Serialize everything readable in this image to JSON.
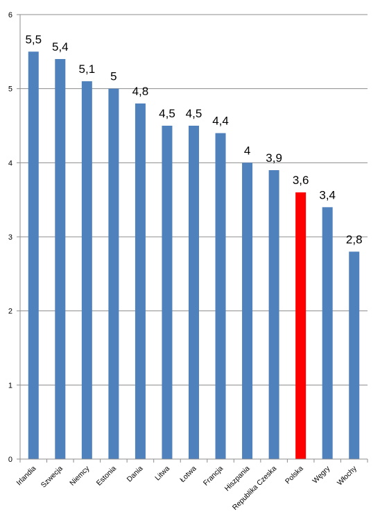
{
  "chart_data": {
    "type": "bar",
    "categories": [
      "Irlandia",
      "Szwecja",
      "Niemcy",
      "Estonia",
      "Dania",
      "Litwa",
      "Łotwa",
      "Francja",
      "Hiszpania",
      "Republika Czeska",
      "Polska",
      "Węgry",
      "Włochy"
    ],
    "values": [
      5.5,
      5.4,
      5.1,
      5.0,
      4.8,
      4.5,
      4.5,
      4.4,
      4.0,
      3.9,
      3.6,
      3.4,
      2.8
    ],
    "data_labels": [
      "5,5",
      "5,4",
      "5,1",
      "5",
      "4,8",
      "4,5",
      "4,5",
      "4,4",
      "4",
      "3,9",
      "3,6",
      "3,4",
      "2,8"
    ],
    "y_ticks": [
      "0",
      "1",
      "2",
      "3",
      "4",
      "5",
      "6"
    ],
    "ylim": [
      0,
      6
    ],
    "title": "",
    "xlabel": "",
    "ylabel": "",
    "grid": true,
    "legend": "none",
    "bar_color": "#4f81bd",
    "highlight_category": "Polska",
    "highlight_color": "#ff0000"
  }
}
